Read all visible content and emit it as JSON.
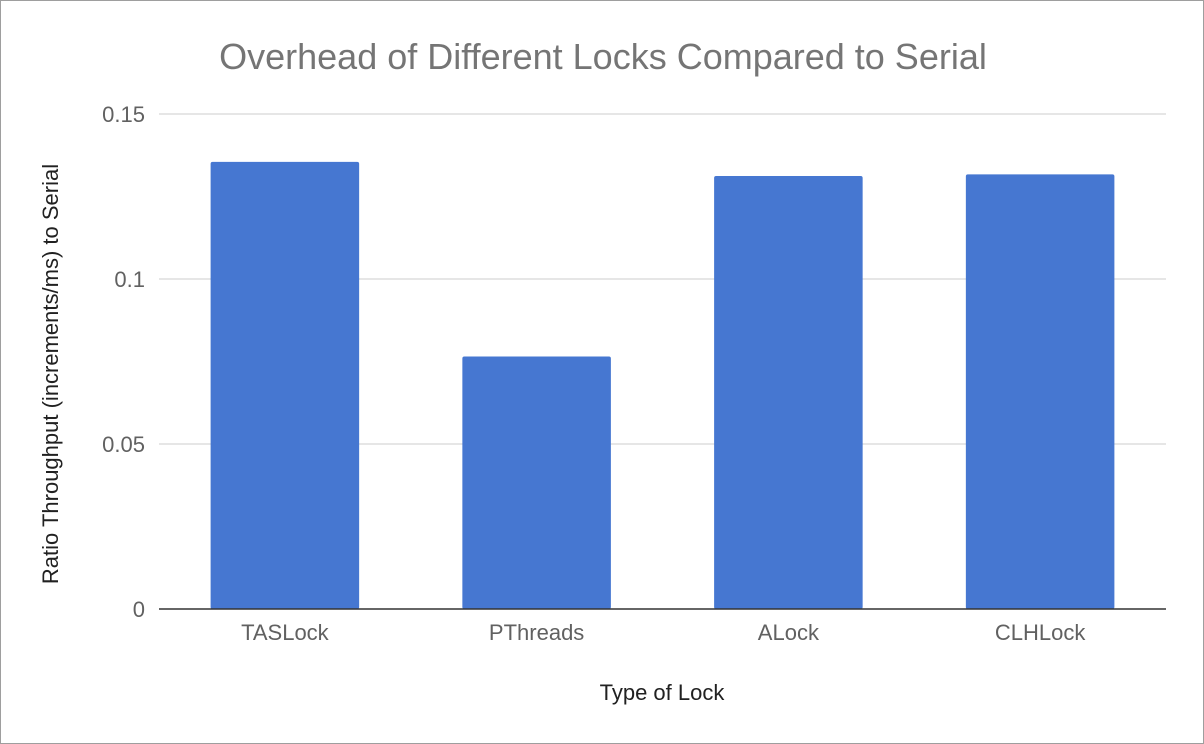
{
  "chart_data": {
    "type": "bar",
    "title": "Overhead of Different Locks Compared to Serial",
    "xlabel": "Type of Lock",
    "ylabel": "Ratio Throughput (increments/ms) to Serial",
    "categories": [
      "TASLock",
      "PThreads",
      "ALock",
      "CLHLock"
    ],
    "values": [
      0.1355,
      0.0765,
      0.1312,
      0.1317
    ],
    "ylim": [
      0,
      0.15
    ],
    "yticks": [
      0,
      0.05,
      0.1,
      0.15
    ],
    "ytick_labels": [
      "0",
      "0.05",
      "0.1",
      "0.15"
    ],
    "grid": true,
    "legend": "none",
    "colors": {
      "bar": "#4677d1",
      "grid": "#cccccc",
      "baseline": "#333333",
      "title": "#757575"
    }
  }
}
